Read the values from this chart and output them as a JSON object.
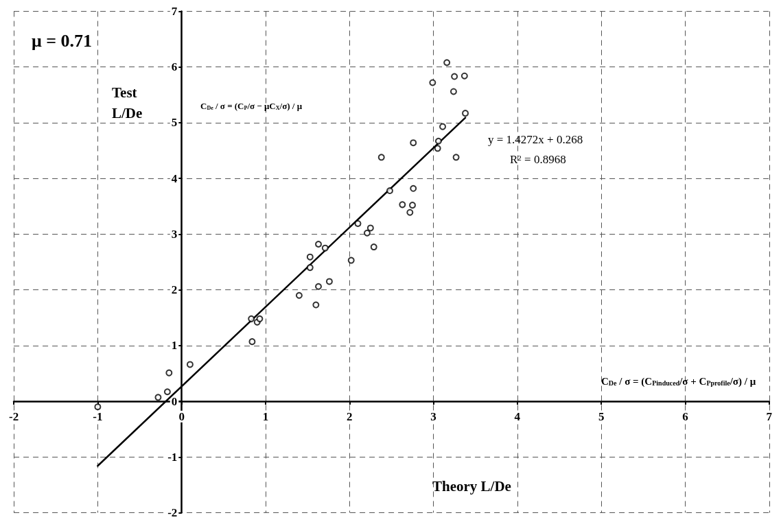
{
  "chart_data": {
    "type": "scatter",
    "xlabel": "Theory L/De",
    "ylabel": "Test L/De",
    "x": [
      -1.0,
      -0.28,
      -0.17,
      -0.15,
      0.1,
      0.83,
      0.9,
      0.93,
      0.84,
      1.4,
      1.6,
      1.63,
      1.76,
      1.53,
      1.53,
      1.63,
      1.71,
      2.02,
      2.1,
      2.21,
      2.25,
      2.29,
      2.48,
      2.63,
      2.75,
      2.72,
      2.76,
      2.76,
      2.38,
      2.99,
      3.16,
      3.25,
      3.37,
      3.24,
      3.38,
      3.11,
      3.06,
      3.05,
      3.27
    ],
    "series": [
      {
        "color": "#000000",
        "values": [
          -0.1,
          0.07,
          0.17,
          0.51,
          0.66,
          1.48,
          1.42,
          1.48,
          1.07,
          1.9,
          1.73,
          2.06,
          2.15,
          2.4,
          2.59,
          2.82,
          2.75,
          2.53,
          3.19,
          3.02,
          3.11,
          2.77,
          3.78,
          3.53,
          3.52,
          3.39,
          3.82,
          4.64,
          4.38,
          5.72,
          6.08,
          5.83,
          5.84,
          5.56,
          5.17,
          4.93,
          4.67,
          4.54,
          4.38
        ]
      },
      {
        "type": "line",
        "color": "#000000",
        "x": [
          -1.0,
          3.38
        ],
        "values": [
          -1.16,
          5.09
        ],
        "marker": "none",
        "line_style": "solid"
      }
    ],
    "xlim": [
      -2,
      7
    ],
    "ylim": [
      -2,
      7
    ],
    "xticks": [
      -2,
      -1,
      0,
      1,
      2,
      3,
      4,
      5,
      6,
      7
    ],
    "yticks": [
      -2,
      -1,
      0,
      1,
      2,
      3,
      4,
      5,
      6,
      7
    ],
    "grid": true,
    "marker": "circle",
    "annotations": [
      "μ = 0.71",
      "y = 1.4272x + 0.268",
      "R$^{2}$ = 0.8968",
      "C$_{De}$ / σ = (C$_{P}$/σ − μC$_{X}$/σ) / μ",
      "C$_{De}$ / σ = (C$_{Pinduced}$/σ + C$_{Pprofile}$/σ) / μ"
    ]
  }
}
